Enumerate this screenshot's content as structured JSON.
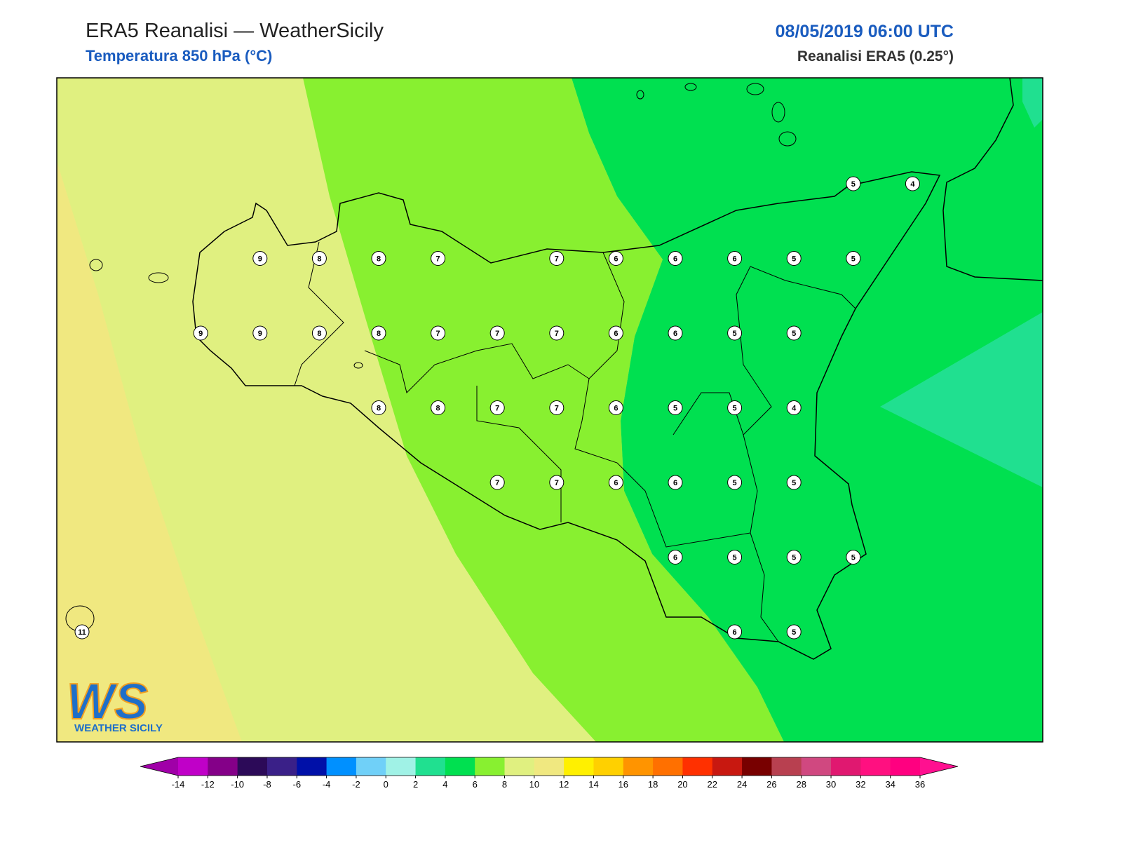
{
  "header": {
    "title": "ERA5 Reanalisi — WeatherSicily",
    "subtitle": "Temperatura 850 hPa (°C)",
    "datetime": "08/05/2019 06:00 UTC",
    "source": "Reanalisi ERA5 (0.25°)"
  },
  "logo": {
    "mark": "WS",
    "name": "WEATHER SICILY"
  },
  "grid_values": {
    "rows": [
      [
        null,
        null,
        null,
        null,
        null,
        null,
        null,
        null,
        null,
        null,
        null,
        null,
        null,
        5,
        4
      ],
      [
        null,
        null,
        null,
        9,
        8,
        8,
        7,
        null,
        7,
        6,
        6,
        6,
        5,
        5,
        null
      ],
      [
        null,
        null,
        9,
        9,
        8,
        8,
        7,
        7,
        7,
        6,
        6,
        5,
        5,
        null,
        null
      ],
      [
        null,
        null,
        null,
        null,
        null,
        8,
        8,
        7,
        7,
        6,
        5,
        5,
        4,
        null,
        null
      ],
      [
        null,
        null,
        null,
        null,
        null,
        null,
        null,
        7,
        7,
        6,
        6,
        5,
        5,
        null,
        null
      ],
      [
        null,
        null,
        null,
        null,
        null,
        null,
        null,
        null,
        null,
        null,
        6,
        5,
        5,
        5,
        null
      ],
      [
        11,
        null,
        null,
        null,
        null,
        null,
        null,
        null,
        null,
        null,
        null,
        6,
        5,
        null,
        null
      ]
    ]
  },
  "colorbar": {
    "ticks": [
      -14,
      -12,
      -10,
      -8,
      -6,
      -4,
      -2,
      0,
      2,
      4,
      6,
      8,
      10,
      12,
      14,
      16,
      18,
      20,
      22,
      24,
      26,
      28,
      30,
      32,
      34,
      36
    ],
    "colors": [
      "#a000a8",
      "#c000c8",
      "#840088",
      "#2c0a58",
      "#3a2088",
      "#0010a8",
      "#0090ff",
      "#70d0f8",
      "#a0f2e6",
      "#20e090",
      "#00e050",
      "#88f030",
      "#e0f080",
      "#f0e880",
      "#fff000",
      "#ffd000",
      "#ff9400",
      "#ff7000",
      "#ff3000",
      "#c81810",
      "#780000",
      "#b84050",
      "#d04880",
      "#e01870",
      "#ff1080",
      "#ff0080",
      "#ff1090"
    ]
  }
}
